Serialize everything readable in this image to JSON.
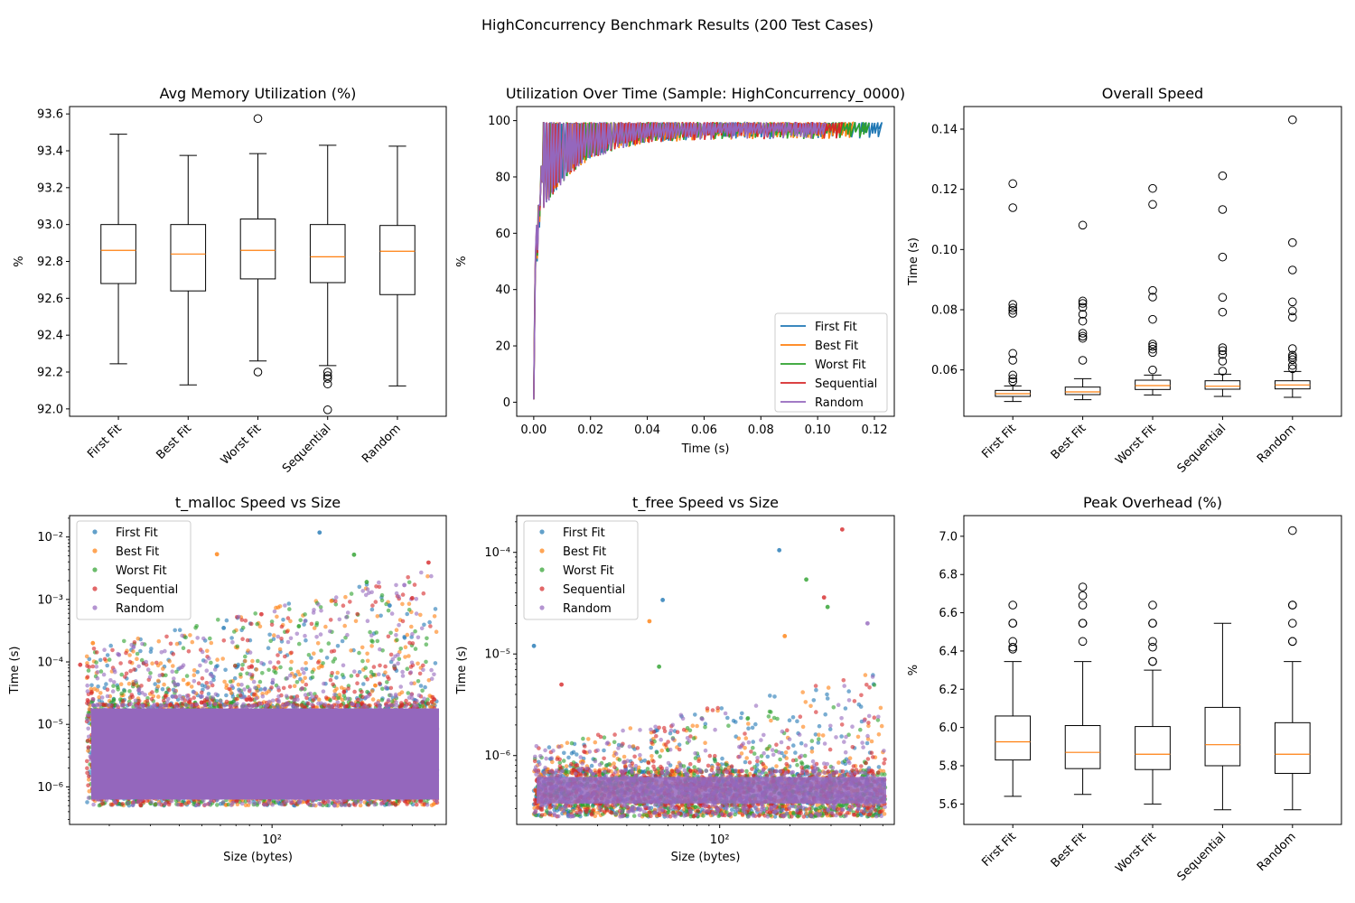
{
  "suptitle": "HighConcurrency Benchmark Results (200 Test Cases)",
  "series_colors": {
    "First Fit": "#1f77b4",
    "Best Fit": "#ff7f0e",
    "Worst Fit": "#2ca02c",
    "Sequential": "#d62728",
    "Random": "#9467bd"
  },
  "median_color": "#ff7f0e",
  "chart_data": [
    {
      "id": "avg-memory-utilization",
      "type": "box",
      "title": "Avg Memory Utilization (%)",
      "xlabel": "",
      "ylabel": "%",
      "categories": [
        "First Fit",
        "Best Fit",
        "Worst Fit",
        "Sequential",
        "Random"
      ],
      "ylim": [
        91.96,
        93.64
      ],
      "yticks": [
        92.0,
        92.2,
        92.4,
        92.6,
        92.8,
        93.0,
        93.2,
        93.4,
        93.6
      ],
      "tick_decimals": 1,
      "boxes": [
        {
          "q1": 92.68,
          "median": 92.86,
          "q3": 93.0,
          "whislo": 92.245,
          "whishi": 93.49,
          "fliers": []
        },
        {
          "q1": 92.64,
          "median": 92.84,
          "q3": 93.0,
          "whislo": 92.13,
          "whishi": 93.375,
          "fliers": []
        },
        {
          "q1": 92.705,
          "median": 92.86,
          "q3": 93.03,
          "whislo": 92.26,
          "whishi": 93.385,
          "fliers": [
            93.575,
            92.2
          ]
        },
        {
          "q1": 92.685,
          "median": 92.825,
          "q3": 93.0,
          "whislo": 92.235,
          "whishi": 93.43,
          "fliers": [
            92.2,
            92.18,
            92.165,
            92.135,
            91.995
          ]
        },
        {
          "q1": 92.62,
          "median": 92.855,
          "q3": 92.995,
          "whislo": 92.125,
          "whishi": 93.425,
          "fliers": []
        }
      ]
    },
    {
      "id": "utilization-over-time",
      "type": "line",
      "title": "Utilization Over Time (Sample: HighConcurrency_0000)",
      "xlabel": "Time (s)",
      "ylabel": "%",
      "xlim": [
        -0.006,
        0.127
      ],
      "ylim": [
        -5,
        105
      ],
      "xticks": [
        0.0,
        0.02,
        0.04,
        0.06,
        0.08,
        0.1,
        0.12
      ],
      "x_tick_decimals": 2,
      "yticks": [
        0,
        20,
        40,
        60,
        80,
        100
      ],
      "y_tick_decimals": 0,
      "legend_position": "lower-right",
      "series": [
        {
          "name": "First Fit",
          "end_time": 0.1215,
          "end_value": 97,
          "sawtooth_period": 0.0012
        },
        {
          "name": "Best Fit",
          "end_time": 0.112,
          "end_value": 99,
          "sawtooth_period": 0.0011
        },
        {
          "name": "Worst Fit",
          "end_time": 0.118,
          "end_value": 98,
          "sawtooth_period": 0.0013
        },
        {
          "name": "Sequential",
          "end_time": 0.108,
          "end_value": 99,
          "sawtooth_period": 0.0012
        },
        {
          "name": "Random",
          "end_time": 0.102,
          "end_value": 99,
          "sawtooth_period": 0.001
        }
      ]
    },
    {
      "id": "overall-speed",
      "type": "box",
      "title": "Overall Speed",
      "xlabel": "",
      "ylabel": "Time (s)",
      "categories": [
        "First Fit",
        "Best Fit",
        "Worst Fit",
        "Sequential",
        "Random"
      ],
      "ylim": [
        0.0446,
        0.1475
      ],
      "yticks": [
        0.06,
        0.08,
        0.1,
        0.12,
        0.14
      ],
      "tick_decimals": 2,
      "boxes": [
        {
          "q1": 0.0512,
          "median": 0.0521,
          "q3": 0.0532,
          "whislo": 0.0495,
          "whishi": 0.0547,
          "fliers": [
            0.1219,
            0.1139,
            0.0818,
            0.0806,
            0.0798,
            0.0788,
            0.0655,
            0.0632,
            0.0583,
            0.0571,
            0.0562
          ]
        },
        {
          "q1": 0.0518,
          "median": 0.0527,
          "q3": 0.0543,
          "whislo": 0.0501,
          "whishi": 0.0571,
          "fliers": [
            0.1081,
            0.0829,
            0.0821,
            0.0808,
            0.0785,
            0.0762,
            0.0722,
            0.0712,
            0.0705,
            0.0632
          ]
        },
        {
          "q1": 0.0535,
          "median": 0.0548,
          "q3": 0.0566,
          "whislo": 0.0517,
          "whishi": 0.0583,
          "fliers": [
            0.1203,
            0.115,
            0.0864,
            0.0842,
            0.0768,
            0.0686,
            0.0678,
            0.0669,
            0.0658,
            0.06
          ]
        },
        {
          "q1": 0.0536,
          "median": 0.0546,
          "q3": 0.0564,
          "whislo": 0.0512,
          "whishi": 0.0586,
          "fliers": [
            0.1245,
            0.1133,
            0.0975,
            0.0841,
            0.0792,
            0.0674,
            0.0664,
            0.0651,
            0.0629,
            0.0596
          ]
        },
        {
          "q1": 0.0537,
          "median": 0.055,
          "q3": 0.0564,
          "whislo": 0.0509,
          "whishi": 0.0595,
          "fliers": [
            0.1431,
            0.1023,
            0.0932,
            0.0826,
            0.0796,
            0.0775,
            0.0671,
            0.0649,
            0.0642,
            0.0634,
            0.0615,
            0.0604
          ]
        }
      ]
    },
    {
      "id": "t-malloc-speed-vs-size",
      "type": "scatter",
      "title": "t_malloc Speed vs Size",
      "xlabel": "Size (bytes)",
      "ylabel": "Time (s)",
      "xscale": "log",
      "yscale": "log",
      "xlim": [
        13.5,
        560
      ],
      "ylim": [
        2.5e-07,
        0.022
      ],
      "xtick_values": [
        100
      ],
      "xtick_labels": [
        "10²"
      ],
      "ytick_values": [
        1e-06,
        1e-05,
        0.0001,
        0.001,
        0.01
      ],
      "ytick_labels": [
        "10⁻⁶",
        "10⁻⁵",
        "10⁻⁴",
        "10⁻³",
        "10⁻²"
      ],
      "legend_position": "upper-left",
      "series_names": [
        "First Fit",
        "Best Fit",
        "Worst Fit",
        "Sequential",
        "Random"
      ],
      "dense_band": {
        "x_from": 16,
        "x_to": 512,
        "time_from": 5e-07,
        "time_to": 2e-05
      },
      "outliers": [
        {
          "series": "First Fit",
          "x": 160,
          "y": 0.0118
        },
        {
          "series": "Best Fit",
          "x": 58,
          "y": 0.0053
        },
        {
          "series": "Worst Fit",
          "x": 225,
          "y": 0.0052
        },
        {
          "series": "Sequential",
          "x": 470,
          "y": 0.0039
        },
        {
          "series": "Worst Fit",
          "x": 255,
          "y": 0.0019
        },
        {
          "series": "Random",
          "x": 370,
          "y": 0.0017
        },
        {
          "series": "Best Fit",
          "x": 17,
          "y": 0.0002
        },
        {
          "series": "Random",
          "x": 22,
          "y": 0.00013
        },
        {
          "series": "Sequential",
          "x": 15,
          "y": 9e-05
        },
        {
          "series": "First Fit",
          "x": 62,
          "y": 0.00035
        },
        {
          "series": "Sequential",
          "x": 90,
          "y": 0.00058
        },
        {
          "series": "Best Fit",
          "x": 180,
          "y": 0.00095
        },
        {
          "series": "Sequential",
          "x": 400,
          "y": 0.00105
        },
        {
          "series": "First Fit",
          "x": 320,
          "y": 0.0008
        }
      ]
    },
    {
      "id": "t-free-speed-vs-size",
      "type": "scatter",
      "title": "t_free Speed vs Size",
      "xlabel": "Size (bytes)",
      "ylabel": "Time (s)",
      "xscale": "log",
      "yscale": "log",
      "xlim": [
        13.5,
        560
      ],
      "ylim": [
        2.1e-07,
        0.00023
      ],
      "xtick_values": [
        100
      ],
      "xtick_labels": [
        "10²"
      ],
      "ytick_values": [
        1e-06,
        1e-05,
        0.0001
      ],
      "ytick_labels": [
        "10⁻⁶",
        "10⁻⁵",
        "10⁻⁴"
      ],
      "legend_position": "upper-left",
      "series_names": [
        "First Fit",
        "Best Fit",
        "Worst Fit",
        "Sequential",
        "Random"
      ],
      "dense_band": {
        "x_from": 16,
        "x_to": 512,
        "time_from": 2.5e-07,
        "time_to": 7e-07
      },
      "outliers": [
        {
          "series": "Sequential",
          "x": 335,
          "y": 0.000168
        },
        {
          "series": "First Fit",
          "x": 180,
          "y": 0.000105
        },
        {
          "series": "Worst Fit",
          "x": 235,
          "y": 5.4e-05
        },
        {
          "series": "First Fit",
          "x": 57,
          "y": 3.4e-05
        },
        {
          "series": "Sequential",
          "x": 280,
          "y": 3.6e-05
        },
        {
          "series": "Worst Fit",
          "x": 290,
          "y": 2.9e-05
        },
        {
          "series": "Best Fit",
          "x": 50,
          "y": 2.1e-05
        },
        {
          "series": "First Fit",
          "x": 16,
          "y": 1.2e-05
        },
        {
          "series": "Random",
          "x": 430,
          "y": 2e-05
        },
        {
          "series": "Sequential",
          "x": 21,
          "y": 5e-06
        },
        {
          "series": "Best Fit",
          "x": 190,
          "y": 1.5e-05
        },
        {
          "series": "Worst Fit",
          "x": 55,
          "y": 7.5e-06
        }
      ]
    },
    {
      "id": "peak-overhead",
      "type": "box",
      "title": "Peak Overhead (%)",
      "xlabel": "",
      "ylabel": "%",
      "categories": [
        "First Fit",
        "Best Fit",
        "Worst Fit",
        "Sequential",
        "Random"
      ],
      "ylim": [
        5.493,
        7.108
      ],
      "yticks": [
        5.6,
        5.8,
        6.0,
        6.2,
        6.4,
        6.6,
        6.8,
        7.0
      ],
      "tick_decimals": 1,
      "boxes": [
        {
          "q1": 5.83,
          "median": 5.925,
          "q3": 6.06,
          "whislo": 5.64,
          "whishi": 6.345,
          "fliers": [
            6.64,
            6.545,
            6.545,
            6.45,
            6.42,
            6.41
          ]
        },
        {
          "q1": 5.785,
          "median": 5.87,
          "q3": 6.01,
          "whislo": 5.65,
          "whishi": 6.345,
          "fliers": [
            6.735,
            6.69,
            6.64,
            6.545,
            6.545,
            6.45
          ]
        },
        {
          "q1": 5.78,
          "median": 5.86,
          "q3": 6.005,
          "whislo": 5.6,
          "whishi": 6.3,
          "fliers": [
            6.64,
            6.545,
            6.545,
            6.45,
            6.42,
            6.345,
            6.345
          ]
        },
        {
          "q1": 5.8,
          "median": 5.91,
          "q3": 6.105,
          "whislo": 5.57,
          "whishi": 6.545,
          "fliers": []
        },
        {
          "q1": 5.76,
          "median": 5.86,
          "q3": 6.025,
          "whislo": 5.57,
          "whishi": 6.345,
          "fliers": [
            7.03,
            6.64,
            6.64,
            6.545,
            6.45,
            6.45
          ]
        }
      ]
    }
  ]
}
